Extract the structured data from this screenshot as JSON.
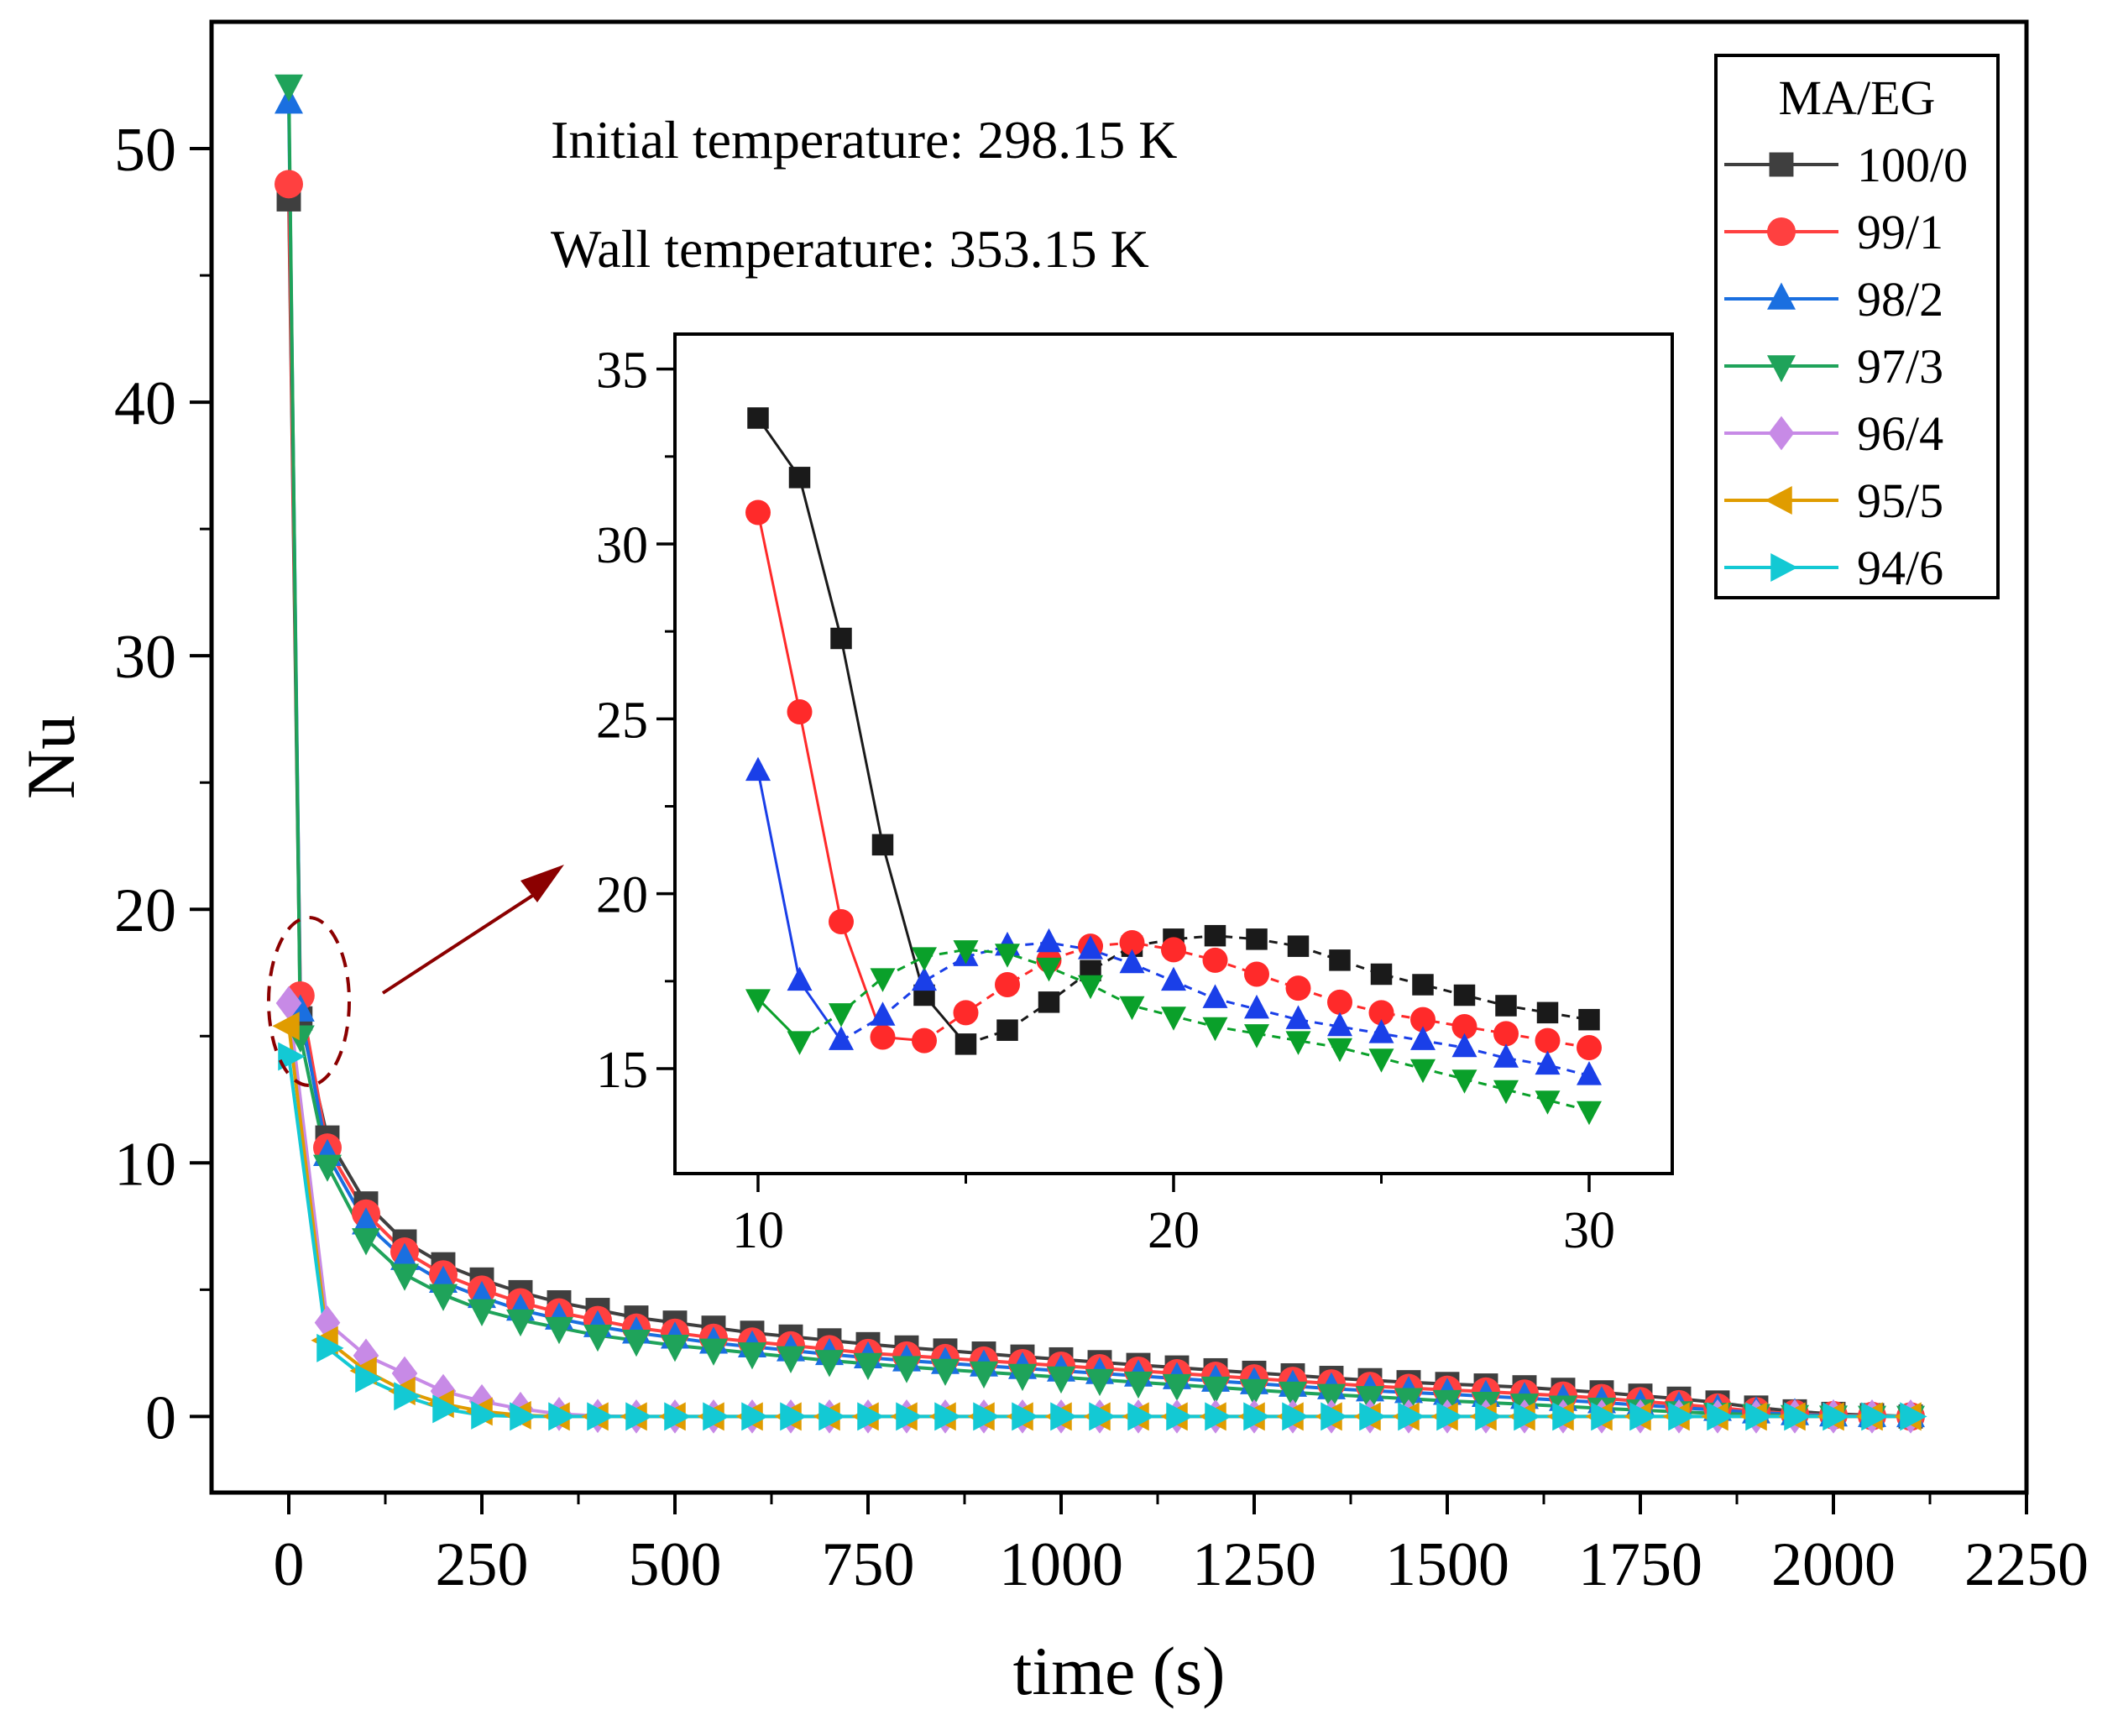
{
  "chart_data": [
    {
      "id": "main",
      "type": "line",
      "xlabel": "time (s)",
      "ylabel": "Nu",
      "xlim": [
        -100,
        2250
      ],
      "ylim": [
        -3,
        55
      ],
      "xticks": [
        0,
        250,
        500,
        750,
        1000,
        1250,
        1500,
        1750,
        2000,
        2250
      ],
      "yticks": [
        0,
        10,
        20,
        30,
        40,
        50
      ],
      "legend_title": "MA/EG",
      "legend_position": "top-right",
      "annotations": [
        "Initial temperature: 298.15 K",
        "Wall temperature: 353.15 K"
      ],
      "series": [
        {
          "name": "100/0",
          "color": "#3f3f3f",
          "marker": "square",
          "x": [
            0,
            15,
            50,
            100,
            150,
            200,
            250,
            300,
            350,
            400,
            450,
            500,
            550,
            600,
            650,
            700,
            750,
            800,
            850,
            900,
            950,
            1000,
            1050,
            1100,
            1150,
            1200,
            1250,
            1300,
            1350,
            1400,
            1450,
            1500,
            1550,
            1600,
            1650,
            1700,
            1750,
            1800,
            1850,
            1900,
            1950,
            2000,
            2050,
            2100
          ],
          "y": [
            48.0,
            15.7,
            11.0,
            8.4,
            6.9,
            6.0,
            5.4,
            4.9,
            4.5,
            4.2,
            3.9,
            3.7,
            3.5,
            3.3,
            3.15,
            3.0,
            2.85,
            2.72,
            2.6,
            2.48,
            2.36,
            2.25,
            2.14,
            2.03,
            1.93,
            1.82,
            1.72,
            1.62,
            1.52,
            1.43,
            1.35,
            1.28,
            1.22,
            1.15,
            1.05,
            0.95,
            0.82,
            0.7,
            0.55,
            0.35,
            0.2,
            0.1,
            0.05,
            0.0
          ]
        },
        {
          "name": "99/1",
          "color": "#ff4040",
          "marker": "circle",
          "x": [
            0,
            15,
            50,
            100,
            150,
            200,
            250,
            300,
            350,
            400,
            450,
            500,
            550,
            600,
            650,
            700,
            750,
            800,
            850,
            900,
            950,
            1000,
            1050,
            1100,
            1150,
            1200,
            1250,
            1300,
            1350,
            1400,
            1450,
            1500,
            1550,
            1600,
            1650,
            1700,
            1750,
            1800,
            1850,
            1900,
            1950,
            2000,
            2050,
            2100
          ],
          "y": [
            48.6,
            16.6,
            10.6,
            8.0,
            6.5,
            5.6,
            5.0,
            4.5,
            4.1,
            3.8,
            3.5,
            3.3,
            3.1,
            2.95,
            2.8,
            2.65,
            2.5,
            2.4,
            2.3,
            2.2,
            2.1,
            2.0,
            1.9,
            1.8,
            1.7,
            1.6,
            1.5,
            1.4,
            1.3,
            1.2,
            1.12,
            1.05,
            0.98,
            0.9,
            0.82,
            0.72,
            0.6,
            0.48,
            0.35,
            0.2,
            0.1,
            0.05,
            0.02,
            0.0
          ]
        },
        {
          "name": "98/2",
          "color": "#1a6fe0",
          "marker": "triangle-up",
          "x": [
            0,
            15,
            50,
            100,
            150,
            200,
            250,
            300,
            350,
            400,
            450,
            500,
            550,
            600,
            650,
            700,
            750,
            800,
            850,
            900,
            950,
            1000,
            1050,
            1100,
            1150,
            1200,
            1250,
            1300,
            1350,
            1400,
            1450,
            1500,
            1550,
            1600,
            1650,
            1700,
            1750,
            1800,
            1850,
            1900,
            1950,
            2000,
            2050,
            2100
          ],
          "y": [
            51.8,
            16.0,
            10.3,
            7.6,
            6.2,
            5.3,
            4.7,
            4.2,
            3.85,
            3.55,
            3.3,
            3.1,
            2.9,
            2.75,
            2.6,
            2.45,
            2.32,
            2.2,
            2.1,
            2.0,
            1.9,
            1.8,
            1.7,
            1.6,
            1.5,
            1.4,
            1.3,
            1.2,
            1.1,
            1.02,
            0.95,
            0.88,
            0.8,
            0.72,
            0.64,
            0.55,
            0.45,
            0.35,
            0.25,
            0.15,
            0.08,
            0.03,
            0.01,
            0.0
          ]
        },
        {
          "name": "97/3",
          "color": "#1fa35a",
          "marker": "triangle-down",
          "x": [
            0,
            15,
            50,
            100,
            150,
            200,
            250,
            300,
            350,
            400,
            450,
            500,
            550,
            600,
            650,
            700,
            750,
            800,
            850,
            900,
            950,
            1000,
            1050,
            1100,
            1150,
            1200,
            1250,
            1300,
            1350,
            1400,
            1450,
            1500,
            1550,
            1600,
            1650,
            1700,
            1750,
            1800,
            1850,
            1900,
            1950,
            2000,
            2050,
            2100
          ],
          "y": [
            52.5,
            15.0,
            9.9,
            7.0,
            5.6,
            4.8,
            4.2,
            3.8,
            3.5,
            3.2,
            3.0,
            2.8,
            2.65,
            2.5,
            2.35,
            2.2,
            2.08,
            1.96,
            1.85,
            1.75,
            1.65,
            1.55,
            1.45,
            1.35,
            1.25,
            1.15,
            1.05,
            0.95,
            0.86,
            0.78,
            0.7,
            0.62,
            0.55,
            0.48,
            0.4,
            0.32,
            0.25,
            0.18,
            0.12,
            0.07,
            0.03,
            0.01,
            0.0,
            0.0
          ]
        },
        {
          "name": "96/4",
          "color": "#c78ae6",
          "marker": "diamond",
          "x": [
            0,
            50,
            100,
            150,
            200,
            250,
            300,
            350,
            400,
            450,
            500,
            550,
            600,
            650,
            700,
            750,
            800,
            850,
            900,
            950,
            1000,
            1050,
            1100,
            1150,
            1200,
            1250,
            1300,
            1350,
            1400,
            1450,
            1500,
            1550,
            1600,
            1650,
            1700,
            1750,
            1800,
            1850,
            1900,
            1950,
            2000,
            2050,
            2100
          ],
          "y": [
            16.3,
            3.7,
            2.4,
            1.7,
            1.0,
            0.6,
            0.3,
            0.1,
            0.02,
            0.0,
            0.0,
            0.0,
            0.0,
            0.0,
            0.0,
            0.0,
            0.0,
            0.0,
            0.0,
            0.0,
            0.0,
            0.0,
            0.0,
            0.0,
            0.0,
            0.0,
            0.0,
            0.0,
            0.0,
            0.0,
            0.0,
            0.0,
            0.0,
            0.0,
            0.0,
            0.0,
            0.0,
            0.0,
            0.0,
            0.0,
            0.0,
            0.0,
            0.0
          ]
        },
        {
          "name": "95/5",
          "color": "#e09c00",
          "marker": "triangle-left",
          "x": [
            0,
            50,
            100,
            150,
            200,
            250,
            300,
            350,
            400,
            450,
            500,
            550,
            600,
            650,
            700,
            750,
            800,
            850,
            900,
            950,
            1000,
            1050,
            1100,
            1150,
            1200,
            1250,
            1300,
            1350,
            1400,
            1450,
            1500,
            1550,
            1600,
            1650,
            1700,
            1750,
            1800,
            1850,
            1900,
            1950,
            2000,
            2050,
            2100
          ],
          "y": [
            15.4,
            3.0,
            1.8,
            1.0,
            0.5,
            0.2,
            0.05,
            0.0,
            0.0,
            0.0,
            0.0,
            0.0,
            0.0,
            0.0,
            0.0,
            0.0,
            0.0,
            0.0,
            0.0,
            0.0,
            0.0,
            0.0,
            0.0,
            0.0,
            0.0,
            0.0,
            0.0,
            0.0,
            0.0,
            0.0,
            0.0,
            0.0,
            0.0,
            0.0,
            0.0,
            0.0,
            0.0,
            0.0,
            0.0,
            0.0,
            0.0,
            0.0,
            0.0
          ]
        },
        {
          "name": "94/6",
          "color": "#13c9d4",
          "marker": "triangle-right",
          "x": [
            0,
            50,
            100,
            150,
            200,
            250,
            300,
            350,
            400,
            450,
            500,
            550,
            600,
            650,
            700,
            750,
            800,
            850,
            900,
            950,
            1000,
            1050,
            1100,
            1150,
            1200,
            1250,
            1300,
            1350,
            1400,
            1450,
            1500,
            1550,
            1600,
            1650,
            1700,
            1750,
            1800,
            1850,
            1900,
            1950,
            2000,
            2050,
            2100
          ],
          "y": [
            14.2,
            2.7,
            1.5,
            0.8,
            0.3,
            0.05,
            0.0,
            0.0,
            0.0,
            0.0,
            0.0,
            0.0,
            0.0,
            0.0,
            0.0,
            0.0,
            0.0,
            0.0,
            0.0,
            0.0,
            0.0,
            0.0,
            0.0,
            0.0,
            0.0,
            0.0,
            0.0,
            0.0,
            0.0,
            0.0,
            0.0,
            0.0,
            0.0,
            0.0,
            0.0,
            0.0,
            0.0,
            0.0,
            0.0,
            0.0,
            0.0,
            0.0,
            0.0
          ]
        }
      ]
    },
    {
      "id": "inset",
      "type": "line",
      "xlim": [
        8,
        32
      ],
      "ylim": [
        12,
        36
      ],
      "xticks": [
        10,
        20,
        30
      ],
      "yticks": [
        15,
        20,
        25,
        30,
        35
      ],
      "series": [
        {
          "name": "100/0",
          "color": "#1a1a1a",
          "marker": "square",
          "line": "solid-dashed",
          "x": [
            10,
            11,
            12,
            13,
            14,
            15,
            16,
            17,
            18,
            19,
            20,
            21,
            22,
            23,
            24,
            25,
            26,
            27,
            28,
            29,
            30
          ],
          "y": [
            33.6,
            31.9,
            27.3,
            21.4,
            17.1,
            15.7,
            16.1,
            16.9,
            17.8,
            18.5,
            18.7,
            18.8,
            18.7,
            18.5,
            18.1,
            17.7,
            17.4,
            17.1,
            16.8,
            16.6,
            16.4
          ]
        },
        {
          "name": "99/1",
          "color": "#ff2a2a",
          "marker": "circle",
          "line": "solid-dashed",
          "x": [
            10,
            11,
            12,
            13,
            14,
            15,
            16,
            17,
            18,
            19,
            20,
            21,
            22,
            23,
            24,
            25,
            26,
            27,
            28,
            29,
            30
          ],
          "y": [
            30.9,
            25.2,
            19.2,
            15.9,
            15.8,
            16.6,
            17.4,
            18.1,
            18.5,
            18.6,
            18.4,
            18.1,
            17.7,
            17.3,
            16.9,
            16.6,
            16.4,
            16.2,
            16.0,
            15.8,
            15.6
          ]
        },
        {
          "name": "98/2",
          "color": "#1a3fe8",
          "marker": "triangle-up",
          "line": "solid-dashed",
          "x": [
            10,
            11,
            12,
            13,
            14,
            15,
            16,
            17,
            18,
            19,
            20,
            21,
            22,
            23,
            24,
            25,
            26,
            27,
            28,
            29,
            30
          ],
          "y": [
            23.5,
            17.5,
            15.8,
            16.5,
            17.5,
            18.2,
            18.5,
            18.6,
            18.4,
            18.0,
            17.5,
            17.0,
            16.7,
            16.4,
            16.2,
            16.0,
            15.8,
            15.6,
            15.3,
            15.1,
            14.8
          ]
        },
        {
          "name": "97/3",
          "color": "#0aa02a",
          "marker": "triangle-down",
          "line": "solid-dashed",
          "x": [
            10,
            11,
            12,
            13,
            14,
            15,
            16,
            17,
            18,
            19,
            20,
            21,
            22,
            23,
            24,
            25,
            26,
            27,
            28,
            29,
            30
          ],
          "y": [
            17.0,
            15.8,
            16.6,
            17.6,
            18.2,
            18.4,
            18.3,
            17.9,
            17.4,
            16.8,
            16.5,
            16.2,
            16.0,
            15.8,
            15.6,
            15.3,
            15.0,
            14.7,
            14.4,
            14.1,
            13.8
          ]
        }
      ]
    }
  ]
}
